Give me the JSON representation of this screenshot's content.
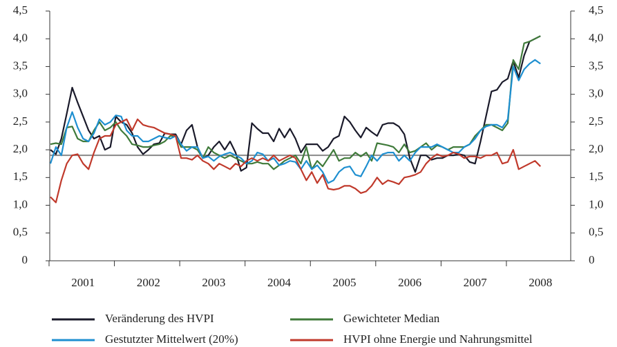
{
  "chart_data": {
    "type": "line",
    "categories": [
      null,
      null,
      null,
      null,
      null,
      null,
      "2001",
      null,
      null,
      null,
      null,
      null,
      null,
      null,
      null,
      null,
      null,
      null,
      "2002",
      null,
      null,
      null,
      null,
      null,
      null,
      null,
      null,
      null,
      null,
      null,
      "2003",
      null,
      null,
      null,
      null,
      null,
      null,
      null,
      null,
      null,
      null,
      null,
      "2004",
      null,
      null,
      null,
      null,
      null,
      null,
      null,
      null,
      null,
      null,
      null,
      "2005",
      null,
      null,
      null,
      null,
      null,
      null,
      null,
      null,
      null,
      null,
      null,
      "2006",
      null,
      null,
      null,
      null,
      null,
      null,
      null,
      null,
      null,
      null,
      null,
      "2007",
      null,
      null,
      null,
      null,
      null,
      null,
      null,
      null,
      null,
      null,
      null,
      "2008"
    ],
    "series": [
      {
        "name": "Veränderung des HVPI",
        "color": "#1a1a2a",
        "values": [
          2.0,
          1.92,
          2.2,
          2.65,
          3.12,
          2.85,
          2.6,
          2.35,
          2.2,
          2.25,
          2.0,
          2.05,
          2.6,
          2.5,
          2.45,
          2.3,
          2.05,
          1.92,
          2.0,
          2.1,
          2.12,
          2.3,
          2.28,
          2.28,
          2.1,
          2.35,
          2.45,
          2.05,
          1.85,
          1.9,
          2.05,
          2.15,
          2.0,
          2.15,
          1.95,
          1.62,
          1.68,
          2.48,
          2.38,
          2.3,
          2.3,
          2.15,
          2.38,
          2.22,
          2.38,
          2.2,
          1.95,
          2.1,
          2.1,
          2.1,
          1.98,
          2.05,
          2.2,
          2.25,
          2.6,
          2.5,
          2.35,
          2.22,
          2.4,
          2.32,
          2.25,
          2.45,
          2.48,
          2.48,
          2.42,
          2.28,
          1.85,
          1.6,
          1.9,
          1.9,
          1.82,
          1.85,
          1.85,
          1.9,
          1.9,
          1.92,
          1.9,
          1.78,
          1.75,
          2.15,
          2.6,
          3.05,
          3.08,
          3.22,
          3.28,
          3.6,
          3.3,
          3.7,
          3.95,
          4.0,
          4.05
        ]
      },
      {
        "name": "Gewichteter Median",
        "color": "#3f7a3a",
        "values": [
          2.1,
          2.12,
          2.1,
          2.4,
          2.42,
          2.2,
          2.15,
          2.15,
          2.35,
          2.5,
          2.35,
          2.4,
          2.5,
          2.35,
          2.25,
          2.1,
          2.08,
          2.05,
          2.05,
          2.08,
          2.1,
          2.15,
          2.25,
          2.25,
          2.05,
          2.05,
          2.05,
          2.0,
          1.85,
          2.05,
          1.95,
          1.9,
          1.85,
          1.9,
          1.85,
          1.8,
          1.75,
          1.75,
          1.78,
          1.75,
          1.75,
          1.65,
          1.72,
          1.8,
          1.85,
          1.9,
          1.75,
          2.05,
          1.65,
          1.8,
          1.7,
          1.85,
          2.0,
          1.8,
          1.85,
          1.85,
          1.95,
          1.88,
          1.95,
          1.8,
          2.12,
          2.1,
          2.08,
          2.05,
          1.95,
          2.1,
          1.95,
          1.98,
          2.05,
          2.12,
          2.0,
          2.08,
          2.05,
          2.0,
          2.05,
          2.05,
          2.05,
          2.1,
          2.25,
          2.35,
          2.45,
          2.45,
          2.4,
          2.35,
          2.48,
          3.62,
          3.45,
          3.92,
          3.95,
          4.0,
          4.05
        ]
      },
      {
        "name": "Gestutzter Mittelwert (20%)",
        "color": "#1e8fd0",
        "values": [
          1.75,
          2.05,
          1.9,
          2.4,
          2.68,
          2.4,
          2.2,
          2.15,
          2.3,
          2.55,
          2.45,
          2.5,
          2.62,
          2.6,
          2.35,
          2.25,
          2.25,
          2.15,
          2.15,
          2.2,
          2.25,
          2.22,
          2.2,
          2.25,
          2.1,
          1.98,
          2.05,
          2.05,
          1.85,
          1.88,
          1.8,
          1.88,
          1.92,
          1.95,
          1.9,
          1.85,
          1.75,
          1.8,
          1.95,
          1.92,
          1.8,
          1.85,
          1.72,
          1.75,
          1.8,
          1.78,
          1.65,
          1.8,
          1.65,
          1.72,
          1.6,
          1.4,
          1.45,
          1.6,
          1.68,
          1.7,
          1.55,
          1.52,
          1.7,
          1.9,
          1.8,
          1.92,
          1.95,
          1.95,
          1.8,
          1.9,
          1.8,
          1.95,
          2.05,
          2.05,
          2.05,
          2.1,
          2.05,
          2.0,
          1.95,
          1.95,
          2.05,
          2.1,
          2.2,
          2.35,
          2.42,
          2.45,
          2.45,
          2.4,
          2.55,
          3.5,
          3.25,
          3.45,
          3.55,
          3.62,
          3.55
        ]
      },
      {
        "name": "HVPI ohne Energie und Nahrungsmittel",
        "color": "#c0392b",
        "values": [
          1.15,
          1.05,
          1.45,
          1.75,
          1.9,
          1.92,
          1.75,
          1.65,
          1.95,
          2.2,
          2.25,
          2.25,
          2.45,
          2.5,
          2.55,
          2.35,
          2.55,
          2.45,
          2.42,
          2.4,
          2.35,
          2.3,
          2.28,
          2.25,
          1.85,
          1.85,
          1.82,
          1.9,
          1.8,
          1.75,
          1.65,
          1.75,
          1.7,
          1.65,
          1.75,
          1.7,
          1.8,
          1.85,
          1.8,
          1.85,
          1.8,
          1.9,
          1.8,
          1.85,
          1.9,
          1.85,
          1.65,
          1.45,
          1.6,
          1.4,
          1.55,
          1.3,
          1.28,
          1.3,
          1.35,
          1.35,
          1.3,
          1.22,
          1.25,
          1.35,
          1.5,
          1.38,
          1.45,
          1.42,
          1.38,
          1.5,
          1.52,
          1.55,
          1.6,
          1.75,
          1.85,
          1.92,
          1.88,
          1.9,
          1.95,
          1.92,
          1.85,
          1.88,
          1.88,
          1.85,
          1.9,
          1.9,
          1.95,
          1.75,
          1.78,
          2.0,
          1.65,
          1.7,
          1.75,
          1.8,
          1.7
        ]
      }
    ],
    "reference_line": 1.9,
    "ylim": [
      0,
      4.5
    ],
    "yticks": [
      0,
      {
        "value": 0.5,
        "label": "0,5"
      },
      {
        "value": 1,
        "label": "1,0"
      },
      {
        "value": 1.5,
        "label": "1,5"
      },
      {
        "value": 2,
        "label": "2,0"
      },
      {
        "value": 2.5,
        "label": "2,5"
      },
      {
        "value": 3,
        "label": "3,0"
      },
      {
        "value": 3.5,
        "label": "3,5"
      },
      {
        "value": 4,
        "label": "4,0"
      },
      {
        "value": 4.5,
        "label": "4,5"
      }
    ],
    "y2lim": [
      0,
      4.5
    ],
    "y2ticks": [
      0,
      {
        "value": 0.5,
        "label": "0,5"
      },
      {
        "value": 1,
        "label": "1,0"
      },
      {
        "value": 1.5,
        "label": "1,5"
      },
      {
        "value": 2,
        "label": "2,0"
      },
      {
        "value": 2.5,
        "label": "2,5"
      },
      {
        "value": 3,
        "label": "3,0"
      },
      {
        "value": 3.5,
        "label": "3,5"
      },
      {
        "value": 4,
        "label": "4,0"
      },
      {
        "value": 4.5,
        "label": "4,5"
      }
    ],
    "legend": "bottom"
  }
}
